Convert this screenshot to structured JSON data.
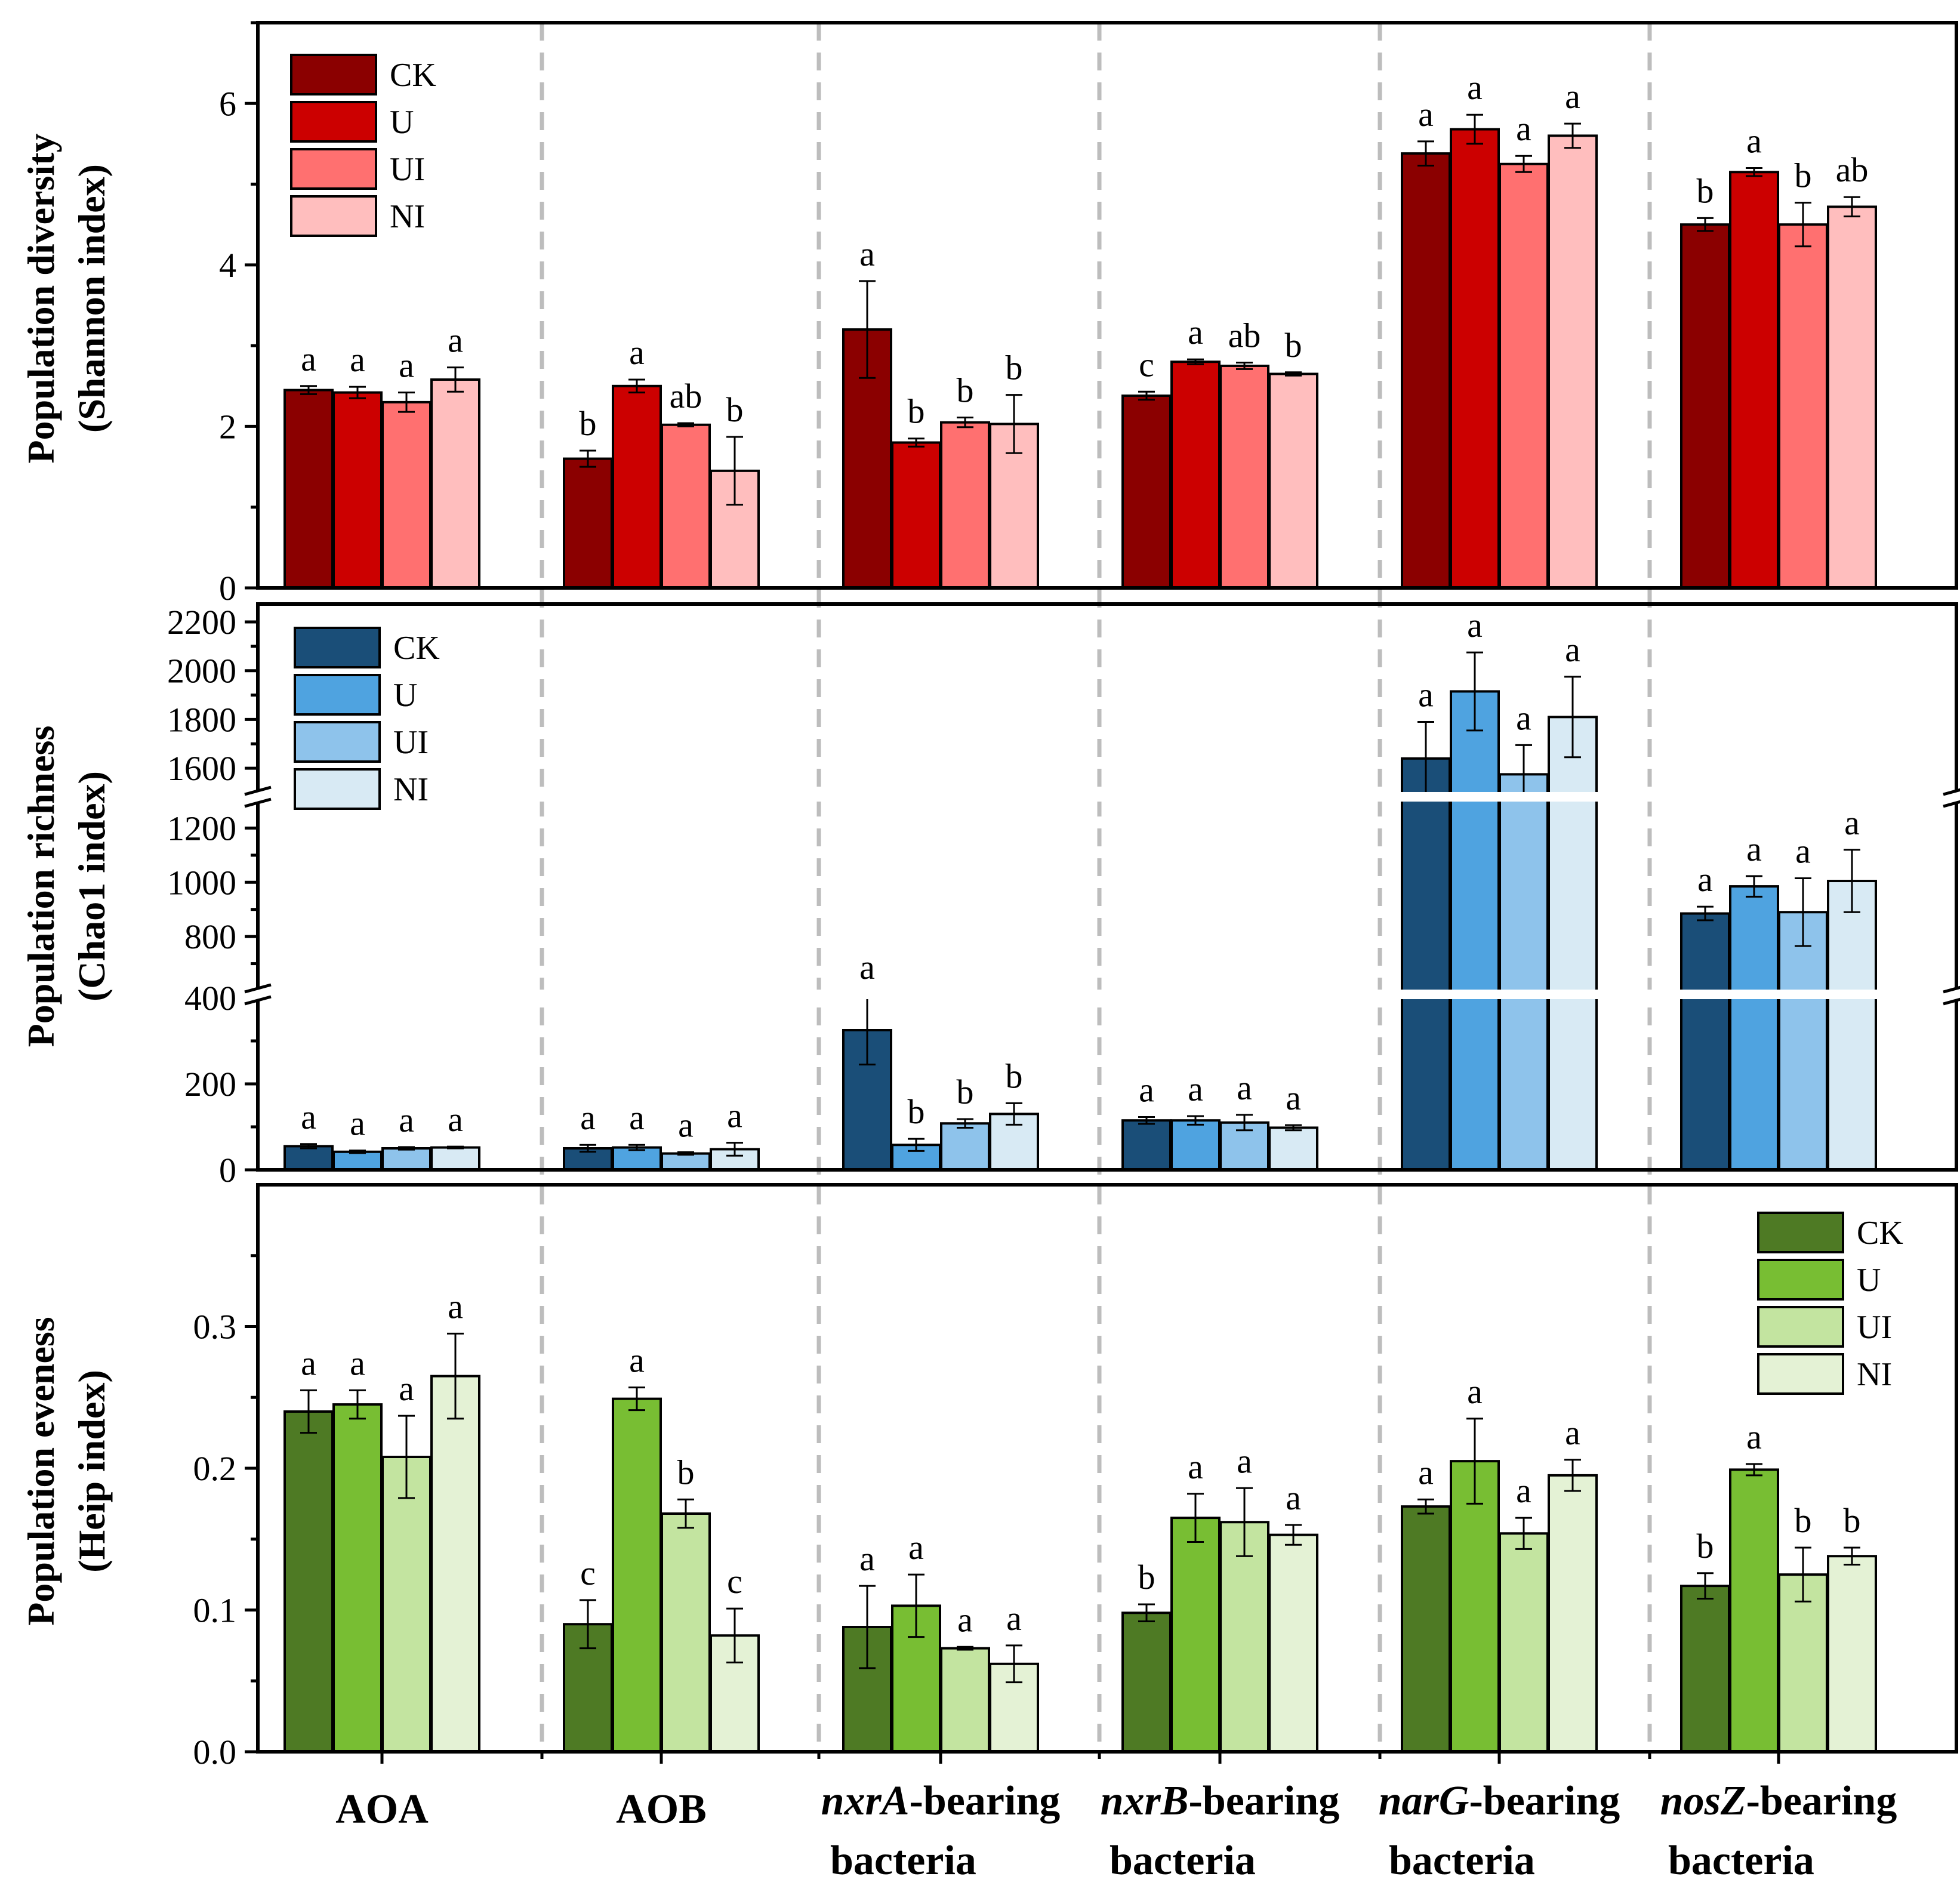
{
  "chart_data": [
    {
      "type": "bar",
      "panel": "diversity",
      "ylabel_line1": "Population diversity",
      "ylabel_line2": "(Shannon index)",
      "ylim": [
        0,
        7
      ],
      "yticks": [
        0,
        2,
        4,
        6
      ],
      "legend_position": "top-left",
      "categories": [
        "AOA",
        "AOB",
        "nxrA-bearing bacteria",
        "nxrB-bearing bacteria",
        "narG-bearing bacteria",
        "nosZ-bearing bacteria"
      ],
      "series": [
        {
          "name": "CK",
          "color": "#8B0000",
          "values": [
            2.45,
            1.6,
            3.2,
            2.38,
            5.38,
            4.5
          ],
          "errors": [
            0.05,
            0.1,
            0.6,
            0.05,
            0.15,
            0.08
          ],
          "letters": [
            "a",
            "b",
            "a",
            "c",
            "a",
            "b"
          ]
        },
        {
          "name": "U",
          "color": "#CC0000",
          "values": [
            2.42,
            2.5,
            1.8,
            2.8,
            5.68,
            5.15
          ],
          "errors": [
            0.07,
            0.08,
            0.05,
            0.03,
            0.18,
            0.05
          ],
          "letters": [
            "a",
            "a",
            "b",
            "a",
            "a",
            "a"
          ]
        },
        {
          "name": "UI",
          "color": "#FF7070",
          "values": [
            2.3,
            2.02,
            2.05,
            2.75,
            5.25,
            4.5
          ],
          "errors": [
            0.12,
            0.02,
            0.06,
            0.04,
            0.1,
            0.27
          ],
          "letters": [
            "a",
            "ab",
            "b",
            "ab",
            "a",
            "b"
          ]
        },
        {
          "name": "NI",
          "color": "#FFBEBE",
          "values": [
            2.58,
            1.45,
            2.03,
            2.65,
            5.6,
            4.72
          ],
          "errors": [
            0.15,
            0.42,
            0.36,
            0.02,
            0.15,
            0.12
          ],
          "letters": [
            "a",
            "b",
            "b",
            "b",
            "a",
            "ab"
          ]
        }
      ]
    },
    {
      "type": "bar",
      "panel": "richness",
      "ylabel_line1": "Population richness",
      "ylabel_line2": "(Chao1 index)",
      "axis_breaks": [
        [
          400,
          600
        ],
        [
          1300,
          1500
        ]
      ],
      "segments": [
        {
          "ylim": [
            0,
            400
          ],
          "yticks": [
            0,
            200,
            400
          ]
        },
        {
          "ylim": [
            600,
            1300
          ],
          "yticks": [
            800,
            1000,
            1200
          ]
        },
        {
          "ylim": [
            1500,
            2200
          ],
          "yticks": [
            1600,
            1800,
            2000,
            2200
          ]
        }
      ],
      "legend_position": "top-left",
      "categories": [
        "AOA",
        "AOB",
        "nxrA-bearing bacteria",
        "nxrB-bearing bacteria",
        "narG-bearing bacteria",
        "nosZ-bearing bacteria"
      ],
      "series": [
        {
          "name": "CK",
          "color": "#1A4E78",
          "values": [
            55,
            50,
            325,
            115,
            1640,
            885
          ],
          "errors": [
            5,
            8,
            80,
            8,
            150,
            25
          ],
          "letters": [
            "a",
            "a",
            "a",
            "a",
            "a",
            "a"
          ]
        },
        {
          "name": "U",
          "color": "#4FA3E0",
          "values": [
            42,
            52,
            58,
            115,
            1915,
            985
          ],
          "errors": [
            3,
            6,
            14,
            10,
            160,
            38
          ],
          "letters": [
            "a",
            "a",
            "b",
            "a",
            "a",
            "a"
          ]
        },
        {
          "name": "UI",
          "color": "#8EC3EB",
          "values": [
            50,
            38,
            108,
            110,
            1575,
            890
          ],
          "errors": [
            3,
            3,
            10,
            18,
            120,
            125
          ],
          "letters": [
            "a",
            "a",
            "b",
            "a",
            "a",
            "a"
          ]
        },
        {
          "name": "NI",
          "color": "#D8EAF4",
          "values": [
            52,
            48,
            130,
            98,
            1810,
            1005
          ],
          "errors": [
            2,
            15,
            25,
            6,
            165,
            115
          ],
          "letters": [
            "a",
            "a",
            "b",
            "a",
            "a",
            "a"
          ]
        }
      ]
    },
    {
      "type": "bar",
      "panel": "evenness",
      "ylabel_line1": "Population eveness",
      "ylabel_line2": "(Heip index)",
      "ylim": [
        0,
        0.4
      ],
      "yticks": [
        "0.0",
        "0.1",
        "0.2",
        "0.3"
      ],
      "legend_position": "top-right",
      "categories": [
        "AOA",
        "AOB",
        "nxrA-bearing bacteria",
        "nxrB-bearing bacteria",
        "narG-bearing bacteria",
        "nosZ-bearing bacteria"
      ],
      "series": [
        {
          "name": "CK",
          "color": "#4E7A24",
          "values": [
            0.24,
            0.09,
            0.088,
            0.098,
            0.173,
            0.117
          ],
          "errors": [
            0.015,
            0.017,
            0.029,
            0.006,
            0.005,
            0.009
          ],
          "letters": [
            "a",
            "c",
            "a",
            "b",
            "a",
            "b"
          ]
        },
        {
          "name": "U",
          "color": "#78BE33",
          "values": [
            0.245,
            0.249,
            0.103,
            0.165,
            0.205,
            0.199
          ],
          "errors": [
            0.01,
            0.008,
            0.022,
            0.017,
            0.03,
            0.004
          ],
          "letters": [
            "a",
            "a",
            "a",
            "a",
            "a",
            "a"
          ]
        },
        {
          "name": "UI",
          "color": "#C3E4A0",
          "values": [
            0.208,
            0.168,
            0.073,
            0.162,
            0.154,
            0.125
          ],
          "errors": [
            0.029,
            0.01,
            0.001,
            0.024,
            0.011,
            0.019
          ],
          "letters": [
            "a",
            "b",
            "a",
            "a",
            "a",
            "b"
          ]
        },
        {
          "name": "NI",
          "color": "#E4F2D5",
          "values": [
            0.265,
            0.082,
            0.062,
            0.153,
            0.195,
            0.138
          ],
          "errors": [
            0.03,
            0.019,
            0.013,
            0.007,
            0.011,
            0.006
          ],
          "letters": [
            "a",
            "c",
            "a",
            "a",
            "a",
            "b"
          ]
        }
      ]
    }
  ],
  "x_labels": [
    {
      "italic": "",
      "rest": "AOA",
      "line2": ""
    },
    {
      "italic": "",
      "rest": "AOB",
      "line2": ""
    },
    {
      "italic": "nxrA",
      "rest": "-bearing",
      "line2": "bacteria"
    },
    {
      "italic": "nxrB",
      "rest": "-bearing",
      "line2": "bacteria"
    },
    {
      "italic": "narG",
      "rest": "-bearing",
      "line2": "bacteria"
    },
    {
      "italic": "nosZ",
      "rest": "-bearing",
      "line2": "bacteria"
    }
  ]
}
